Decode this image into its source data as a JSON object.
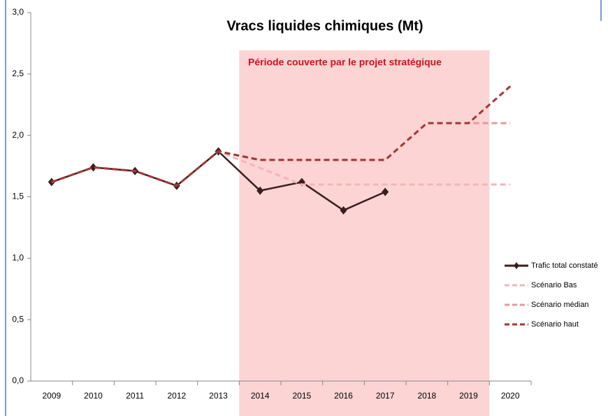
{
  "chart_data": {
    "type": "line",
    "title": "Vracs liquides chimiques (Mt)",
    "annotation": "Période couverte par le projet stratégique",
    "shaded_range": [
      "2014",
      "2019"
    ],
    "categories": [
      "2009",
      "2010",
      "2011",
      "2012",
      "2013",
      "2014",
      "2015",
      "2016",
      "2017",
      "2018",
      "2019",
      "2020"
    ],
    "series": [
      {
        "name": "Trafic total constaté",
        "color": "#3a1e1e",
        "dash": false,
        "marker": true,
        "values": [
          1.62,
          1.74,
          1.71,
          1.59,
          1.87,
          1.55,
          1.62,
          1.39,
          1.54,
          null,
          null,
          null
        ]
      },
      {
        "name": "Scénario Bas",
        "color": "#f2b6b6",
        "dash": true,
        "marker": false,
        "values": [
          1.62,
          1.74,
          1.71,
          1.59,
          1.87,
          1.735,
          1.6,
          1.6,
          1.6,
          1.6,
          1.6,
          1.6
        ]
      },
      {
        "name": "Scénario médian",
        "color": "#e39a9a",
        "dash": true,
        "marker": false,
        "values": [
          1.62,
          1.74,
          1.71,
          1.59,
          1.87,
          1.8,
          1.8,
          1.8,
          1.8,
          2.1,
          2.1,
          2.1
        ]
      },
      {
        "name": "Scénario haut",
        "color": "#a83535",
        "dash": true,
        "marker": false,
        "values": [
          1.62,
          1.74,
          1.71,
          1.59,
          1.87,
          1.8,
          1.8,
          1.8,
          1.8,
          2.1,
          2.1,
          2.4
        ]
      }
    ],
    "ylim": [
      0,
      3
    ],
    "yticks": [
      {
        "value": 0,
        "label": "0,0"
      },
      {
        "value": 0.5,
        "label": "0,5"
      },
      {
        "value": 1,
        "label": "1,0"
      },
      {
        "value": 1.5,
        "label": "1,5"
      },
      {
        "value": 2,
        "label": "2,0"
      },
      {
        "value": 2.5,
        "label": "2,5"
      },
      {
        "value": 3,
        "label": "3,0"
      }
    ],
    "grid": false,
    "legend": "right"
  }
}
